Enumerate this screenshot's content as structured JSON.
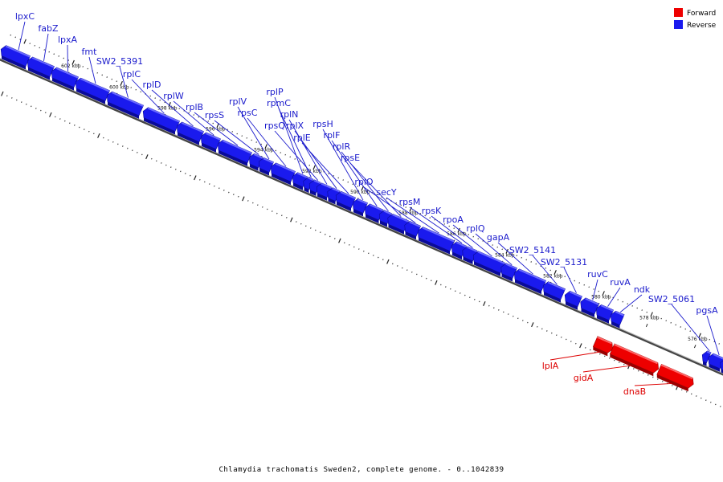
{
  "legend": {
    "forward": {
      "label": "Forward",
      "color": "#ee0000"
    },
    "reverse": {
      "label": "Reverse",
      "color": "#1a1aee"
    }
  },
  "caption": "Chlamydia trachomatis Sweden2, complete genome. - 0..1042839",
  "genome": {
    "start_kbp": 604.6,
    "end_kbp": 574.6
  },
  "tick_labels": [
    {
      "kbp": 602,
      "text": "602 kbp"
    },
    {
      "kbp": 600,
      "text": "600 kbp"
    },
    {
      "kbp": 598,
      "text": "598 kbp"
    },
    {
      "kbp": 596,
      "text": "596 kbp"
    },
    {
      "kbp": 594,
      "text": "594 kbp"
    },
    {
      "kbp": 592,
      "text": "592 kbp"
    },
    {
      "kbp": 590,
      "text": "590 kbp"
    },
    {
      "kbp": 588,
      "text": "588 kbp"
    },
    {
      "kbp": 586,
      "text": "586 kbp"
    },
    {
      "kbp": 584,
      "text": "584 kbp"
    },
    {
      "kbp": 582,
      "text": "582 kbp"
    },
    {
      "kbp": 580,
      "text": "580 kbp"
    },
    {
      "kbp": 578,
      "text": "578 kbp"
    },
    {
      "kbp": 576,
      "text": "576 kbp"
    }
  ],
  "genes": [
    {
      "name": "lpxC",
      "strand": "reverse",
      "start_kbp": 604.6,
      "end_kbp": 603.6
    },
    {
      "name": "fabZ",
      "strand": "reverse",
      "start_kbp": 603.5,
      "end_kbp": 602.6
    },
    {
      "name": "lpxA",
      "strand": "reverse",
      "start_kbp": 602.5,
      "end_kbp": 601.6
    },
    {
      "name": "fmt",
      "strand": "reverse",
      "start_kbp": 601.5,
      "end_kbp": 600.3
    },
    {
      "name": "SW2_5391",
      "strand": "reverse",
      "start_kbp": 600.2,
      "end_kbp": 598.9
    },
    {
      "name": "rplC",
      "strand": "reverse",
      "start_kbp": 598.7,
      "end_kbp": 597.4
    },
    {
      "name": "rplD",
      "strand": "reverse",
      "start_kbp": 597.3,
      "end_kbp": 596.4
    },
    {
      "name": "rplW",
      "strand": "reverse",
      "start_kbp": 596.3,
      "end_kbp": 595.7
    },
    {
      "name": "rplB",
      "strand": "reverse",
      "start_kbp": 595.6,
      "end_kbp": 594.4
    },
    {
      "name": "rpsS",
      "strand": "reverse",
      "start_kbp": 594.3,
      "end_kbp": 593.95
    },
    {
      "name": "rplV",
      "strand": "reverse",
      "start_kbp": 593.9,
      "end_kbp": 593.5
    },
    {
      "name": "rpsC",
      "strand": "reverse",
      "start_kbp": 593.4,
      "end_kbp": 592.6
    },
    {
      "name": "rplP",
      "strand": "reverse",
      "start_kbp": 592.5,
      "end_kbp": 592.1
    },
    {
      "name": "rpmC",
      "strand": "reverse",
      "start_kbp": 592.05,
      "end_kbp": 591.85
    },
    {
      "name": "rpsQ",
      "strand": "reverse",
      "start_kbp": 591.8,
      "end_kbp": 591.55
    },
    {
      "name": "rplN",
      "strand": "reverse",
      "start_kbp": 591.5,
      "end_kbp": 591.1
    },
    {
      "name": "rplX",
      "strand": "reverse",
      "start_kbp": 591.05,
      "end_kbp": 590.75
    },
    {
      "name": "rplE",
      "strand": "reverse",
      "start_kbp": 590.7,
      "end_kbp": 590.1
    },
    {
      "name": "rpsH",
      "strand": "reverse",
      "start_kbp": 590.0,
      "end_kbp": 589.6
    },
    {
      "name": "rplF",
      "strand": "reverse",
      "start_kbp": 589.5,
      "end_kbp": 588.95
    },
    {
      "name": "rplR",
      "strand": "reverse",
      "start_kbp": 588.9,
      "end_kbp": 588.6
    },
    {
      "name": "rpsE",
      "strand": "reverse",
      "start_kbp": 588.55,
      "end_kbp": 587.9
    },
    {
      "name": "rplO",
      "strand": "reverse",
      "start_kbp": 587.85,
      "end_kbp": 587.4
    },
    {
      "name": "secY",
      "strand": "reverse",
      "start_kbp": 587.3,
      "end_kbp": 586.0
    },
    {
      "name": "rpsM",
      "strand": "reverse",
      "start_kbp": 585.9,
      "end_kbp": 585.5
    },
    {
      "name": "rpsK",
      "strand": "reverse",
      "start_kbp": 585.45,
      "end_kbp": 585.05
    },
    {
      "name": "rpoA",
      "strand": "reverse",
      "start_kbp": 585.0,
      "end_kbp": 583.9
    },
    {
      "name": "rplQ",
      "strand": "reverse",
      "start_kbp": 583.85,
      "end_kbp": 583.4
    },
    {
      "name": "gapA",
      "strand": "reverse",
      "start_kbp": 583.3,
      "end_kbp": 582.2
    },
    {
      "name": "SW2_5141",
      "strand": "reverse",
      "start_kbp": 582.1,
      "end_kbp": 581.4
    },
    {
      "name": "SW2_5131",
      "strand": "reverse",
      "start_kbp": 581.2,
      "end_kbp": 580.7
    },
    {
      "name": "ruvC",
      "strand": "reverse",
      "start_kbp": 580.55,
      "end_kbp": 580.0
    },
    {
      "name": "ruvA",
      "strand": "reverse",
      "start_kbp": 579.9,
      "end_kbp": 579.4
    },
    {
      "name": "ndk",
      "strand": "reverse",
      "start_kbp": 579.3,
      "end_kbp": 578.95
    },
    {
      "name": "lplA",
      "strand": "forward",
      "start_kbp": 579.55,
      "end_kbp": 578.95
    },
    {
      "name": "gidA",
      "strand": "forward",
      "start_kbp": 578.85,
      "end_kbp": 577.05
    },
    {
      "name": "dnaB",
      "strand": "forward",
      "start_kbp": 576.9,
      "end_kbp": 575.6
    },
    {
      "name": "SW2_5061",
      "strand": "reverse",
      "start_kbp": 575.5,
      "end_kbp": 575.35
    },
    {
      "name": "pgsA",
      "strand": "reverse",
      "start_kbp": 575.25,
      "end_kbp": 574.8
    },
    {
      "name": "",
      "strand": "reverse",
      "start_kbp": 574.75,
      "end_kbp": 573.5
    }
  ]
}
